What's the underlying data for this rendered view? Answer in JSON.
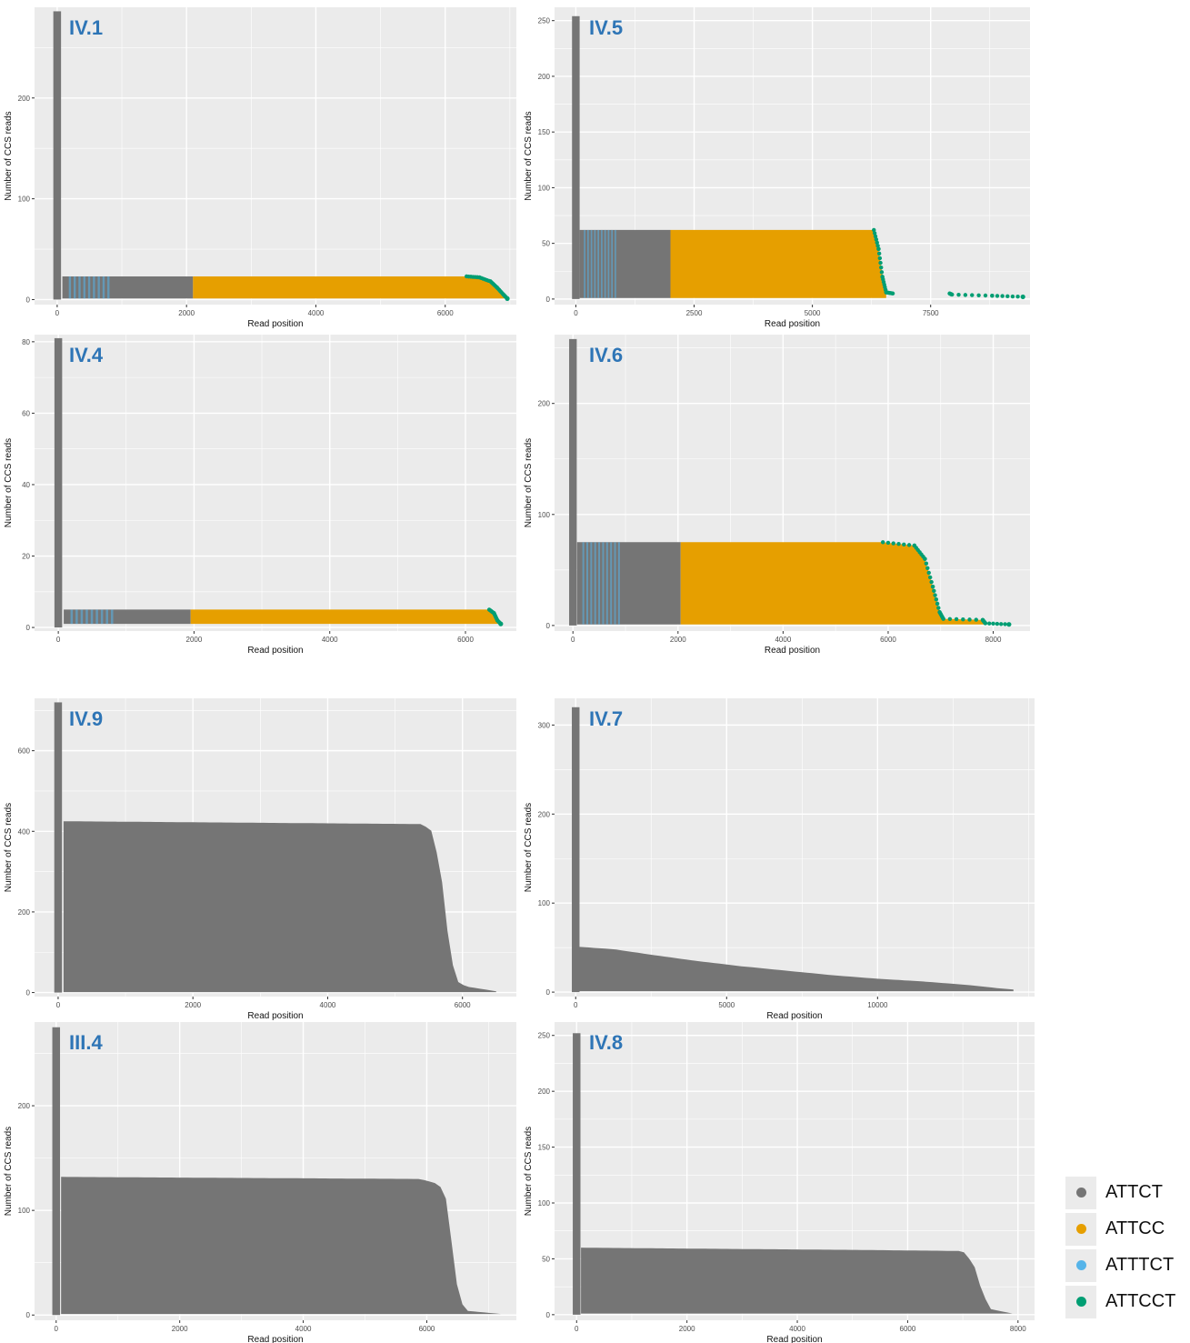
{
  "colors": {
    "ATTCT": "#757575",
    "ATTCC": "#e69f00",
    "ATTTCT": "#56b4e9",
    "ATTCCT": "#009e73"
  },
  "legend": {
    "items": [
      {
        "label": "ATTCT",
        "color": "#757575"
      },
      {
        "label": "ATTCC",
        "color": "#e69f00"
      },
      {
        "label": "ATTTCT",
        "color": "#56b4e9"
      },
      {
        "label": "ATTCCT",
        "color": "#009e73"
      }
    ]
  },
  "chart_data": [
    {
      "type": "scatter",
      "title": "IV.1",
      "xlabel": "Read position",
      "ylabel": "Number of CCS reads",
      "xlim": [
        -350,
        7100
      ],
      "ylim": [
        -5,
        290
      ],
      "xticks": [
        0,
        2000,
        4000,
        6000
      ],
      "xtick_labels": [
        "0",
        "2000",
        "4000",
        "6000"
      ],
      "yticks": [
        0,
        100,
        200
      ],
      "ytick_labels": [
        "0",
        "100",
        "200"
      ],
      "peak": {
        "x": 0,
        "reads": 286
      },
      "profile": [
        [
          80,
          23
        ],
        [
          6330,
          23
        ],
        [
          6530,
          22
        ],
        [
          6700,
          18
        ],
        [
          6800,
          12
        ],
        [
          6900,
          5
        ],
        [
          6960,
          1
        ]
      ],
      "segments": [
        {
          "motif": "ATTCT",
          "from": 80,
          "to": 2100
        },
        {
          "motif": "ATTCC",
          "from": 2100,
          "to": 6960
        }
      ],
      "blue_band": [
        180,
        850
      ],
      "grid": true
    },
    {
      "type": "scatter",
      "title": "IV.5",
      "xlabel": "Read position",
      "ylabel": "Number of CCS reads",
      "xlim": [
        -450,
        9600
      ],
      "ylim": [
        -5,
        262
      ],
      "xticks": [
        0,
        2500,
        5000,
        7500
      ],
      "xtick_labels": [
        "0",
        "2500",
        "5000",
        "7500"
      ],
      "yticks": [
        0,
        50,
        100,
        150,
        200,
        250
      ],
      "ytick_labels": [
        "0",
        "50",
        "100",
        "150",
        "200",
        "250"
      ],
      "peak": {
        "x": 0,
        "reads": 254
      },
      "profile": [
        [
          80,
          62
        ],
        [
          6300,
          62
        ],
        [
          6400,
          45
        ],
        [
          6480,
          20
        ],
        [
          6560,
          6
        ],
        [
          6700,
          5
        ],
        [
          7900,
          5
        ],
        [
          7950,
          4
        ],
        [
          8800,
          3
        ],
        [
          9450,
          2
        ]
      ],
      "segments": [
        {
          "motif": "ATTCT",
          "from": 80,
          "to": 2000
        },
        {
          "motif": "ATTCC",
          "from": 2000,
          "to": 6560
        }
      ],
      "blue_band": [
        170,
        820
      ],
      "grid": true
    },
    {
      "type": "scatter",
      "title": "IV.4",
      "xlabel": "Read position",
      "ylabel": "Number of CCS reads",
      "xlim": [
        -350,
        6750
      ],
      "ylim": [
        -1,
        82
      ],
      "xticks": [
        0,
        2000,
        4000,
        6000
      ],
      "xtick_labels": [
        "0",
        "2000",
        "4000",
        "6000"
      ],
      "yticks": [
        0,
        20,
        40,
        60,
        80
      ],
      "ytick_labels": [
        "0",
        "20",
        "40",
        "60",
        "80"
      ],
      "peak": {
        "x": 0,
        "reads": 81
      },
      "profile": [
        [
          80,
          5
        ],
        [
          6350,
          5
        ],
        [
          6420,
          4
        ],
        [
          6470,
          2
        ],
        [
          6520,
          1
        ]
      ],
      "segments": [
        {
          "motif": "ATTCT",
          "from": 80,
          "to": 1950
        },
        {
          "motif": "ATTCC",
          "from": 1950,
          "to": 6520
        }
      ],
      "blue_band": [
        180,
        850
      ],
      "grid": true
    },
    {
      "type": "scatter",
      "title": "IV.6",
      "xlabel": "Read position",
      "ylabel": "Number of CCS reads",
      "xlim": [
        -350,
        8700
      ],
      "ylim": [
        -5,
        262
      ],
      "xticks": [
        0,
        2000,
        4000,
        6000,
        8000
      ],
      "xtick_labels": [
        "0",
        "2000",
        "4000",
        "6000",
        "8000"
      ],
      "yticks": [
        0,
        100,
        200
      ],
      "ytick_labels": [
        "0",
        "100",
        "200"
      ],
      "peak": {
        "x": 0,
        "reads": 258
      },
      "profile": [
        [
          80,
          75
        ],
        [
          5900,
          75
        ],
        [
          6500,
          72
        ],
        [
          6700,
          60
        ],
        [
          6850,
          35
        ],
        [
          6980,
          12
        ],
        [
          7050,
          6
        ],
        [
          7800,
          5
        ],
        [
          7850,
          2
        ],
        [
          8300,
          1
        ]
      ],
      "segments": [
        {
          "motif": "ATTCT",
          "from": 80,
          "to": 2050
        },
        {
          "motif": "ATTCC",
          "from": 2050,
          "to": 7850
        }
      ],
      "blue_band": [
        180,
        860
      ],
      "grid": true
    },
    {
      "type": "scatter",
      "title": "IV.9",
      "xlabel": "Read position",
      "ylabel": "Number of CCS reads",
      "xlim": [
        -350,
        6800
      ],
      "ylim": [
        -10,
        730
      ],
      "xticks": [
        0,
        2000,
        4000,
        6000
      ],
      "xtick_labels": [
        "0",
        "2000",
        "4000",
        "6000"
      ],
      "yticks": [
        0,
        200,
        400,
        600
      ],
      "ytick_labels": [
        "0",
        "200",
        "400",
        "600"
      ],
      "peak": {
        "x": 0,
        "reads": 720
      },
      "profile": [
        [
          80,
          425
        ],
        [
          5400,
          418
        ],
        [
          5550,
          400
        ],
        [
          5680,
          300
        ],
        [
          5800,
          120
        ],
        [
          5900,
          30
        ],
        [
          6050,
          15
        ],
        [
          6500,
          3
        ]
      ],
      "segments": [
        {
          "motif": "ATTCT",
          "from": 80,
          "to": 6500
        }
      ],
      "blue_band": null,
      "grid": true
    },
    {
      "type": "scatter",
      "title": "IV.7",
      "xlabel": "Read position",
      "ylabel": "Number of CCS reads",
      "xlim": [
        -700,
        15200
      ],
      "ylim": [
        -5,
        330
      ],
      "xticks": [
        0,
        5000,
        10000
      ],
      "xtick_labels": [
        "0",
        "5000",
        "10000"
      ],
      "yticks": [
        0,
        100,
        200,
        300
      ],
      "ytick_labels": [
        "0",
        "100",
        "200",
        "300"
      ],
      "peak": {
        "x": 0,
        "reads": 320
      },
      "profile": [
        [
          80,
          51
        ],
        [
          1300,
          48
        ],
        [
          2500,
          42
        ],
        [
          4000,
          35
        ],
        [
          5500,
          29
        ],
        [
          7000,
          24
        ],
        [
          8500,
          19
        ],
        [
          10000,
          15
        ],
        [
          11500,
          12
        ],
        [
          13000,
          8
        ],
        [
          14100,
          4
        ],
        [
          14500,
          3
        ]
      ],
      "segments": [
        {
          "motif": "ATTCT",
          "from": 80,
          "to": 14500
        }
      ],
      "blue_band": null,
      "grid": true
    },
    {
      "type": "scatter",
      "title": "III.4",
      "xlabel": "Read position",
      "ylabel": "Number of CCS reads",
      "xlim": [
        -350,
        7450
      ],
      "ylim": [
        -5,
        280
      ],
      "xticks": [
        0,
        2000,
        4000,
        6000
      ],
      "xtick_labels": [
        "0",
        "2000",
        "4000",
        "6000"
      ],
      "yticks": [
        0,
        100,
        200
      ],
      "ytick_labels": [
        "0",
        "100",
        "200"
      ],
      "peak": {
        "x": 0,
        "reads": 275
      },
      "profile": [
        [
          80,
          132
        ],
        [
          5900,
          130
        ],
        [
          6200,
          125
        ],
        [
          6320,
          110
        ],
        [
          6420,
          60
        ],
        [
          6520,
          15
        ],
        [
          6650,
          4
        ],
        [
          7200,
          1
        ]
      ],
      "segments": [
        {
          "motif": "ATTCT",
          "from": 80,
          "to": 7200
        }
      ],
      "blue_band": null,
      "grid": true
    },
    {
      "type": "scatter",
      "title": "IV.8",
      "xlabel": "Read position",
      "ylabel": "Number of CCS reads",
      "xlim": [
        -400,
        8300
      ],
      "ylim": [
        -5,
        262
      ],
      "xticks": [
        0,
        2000,
        4000,
        6000,
        8000
      ],
      "xtick_labels": [
        "0",
        "2000",
        "4000",
        "6000",
        "8000"
      ],
      "yticks": [
        0,
        50,
        100,
        150,
        200,
        250
      ],
      "ytick_labels": [
        "0",
        "50",
        "100",
        "150",
        "200",
        "250"
      ],
      "peak": {
        "x": 0,
        "reads": 252
      },
      "profile": [
        [
          80,
          60
        ],
        [
          2400,
          59
        ],
        [
          5000,
          58
        ],
        [
          7000,
          57
        ],
        [
          7200,
          45
        ],
        [
          7350,
          20
        ],
        [
          7500,
          5
        ],
        [
          7900,
          1
        ]
      ],
      "segments": [
        {
          "motif": "ATTCT",
          "from": 80,
          "to": 7900
        }
      ],
      "blue_band": null,
      "grid": true
    }
  ]
}
